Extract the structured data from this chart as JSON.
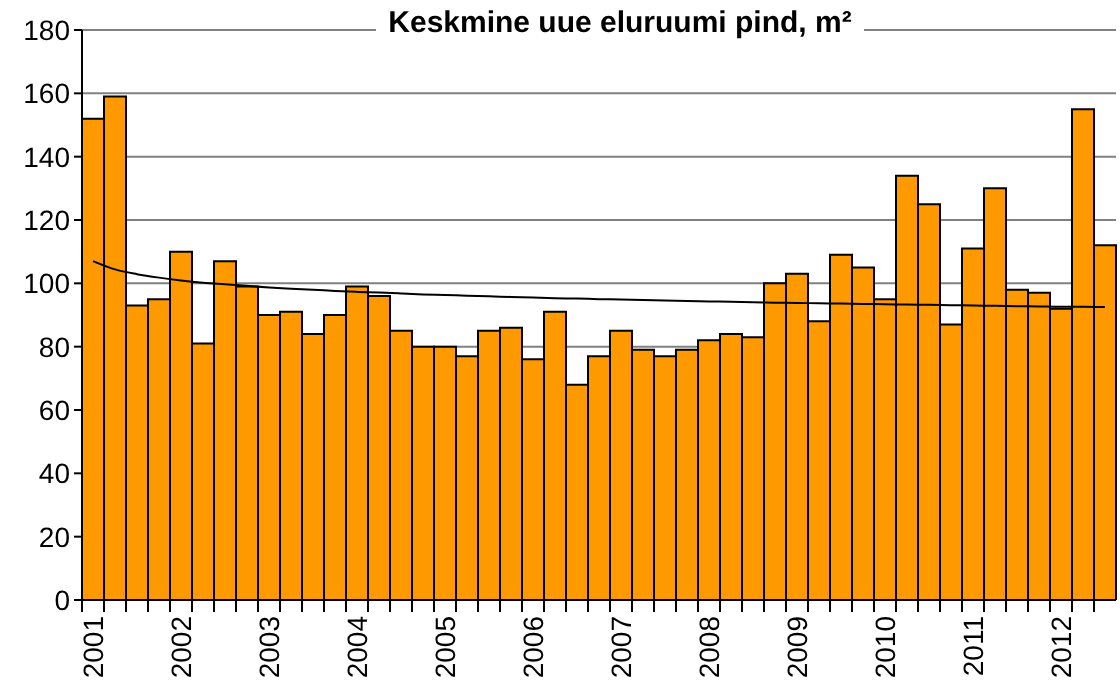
{
  "chart_data": {
    "type": "bar",
    "title": "Keskmine uue eluruumi pind, m²",
    "categories": [
      "2001",
      null,
      null,
      null,
      "2002",
      null,
      null,
      null,
      "2003",
      null,
      null,
      null,
      "2004",
      null,
      null,
      null,
      "2005",
      null,
      null,
      null,
      "2006",
      null,
      null,
      null,
      "2007",
      null,
      null,
      null,
      "2008",
      null,
      null,
      null,
      "2009",
      null,
      null,
      null,
      "2010",
      null,
      null,
      null,
      "2011",
      null,
      null,
      null,
      "2012",
      null,
      null
    ],
    "series": [
      {
        "color": "#ff9900",
        "values": [
          152,
          159,
          93,
          95,
          110,
          81,
          107,
          99,
          90,
          91,
          84,
          90,
          99,
          96,
          85,
          80,
          80,
          77,
          85,
          86,
          76,
          91,
          68,
          77,
          85,
          79,
          77,
          79,
          82,
          84,
          83,
          100,
          103,
          88,
          109,
          105,
          95,
          134,
          125,
          87,
          111,
          130,
          98,
          97,
          92,
          155,
          112
        ]
      },
      {
        "type": "line",
        "color": "#000000",
        "values": [
          107,
          104.4,
          102.9,
          101.8,
          100.9,
          100.2,
          99.7,
          99.2,
          98.7,
          98.3,
          98.0,
          97.6,
          97.3,
          97.1,
          96.8,
          96.5,
          96.3,
          96.1,
          95.9,
          95.7,
          95.5,
          95.3,
          95.2,
          95.0,
          94.9,
          94.7,
          94.6,
          94.4,
          94.3,
          94.2,
          94.0,
          93.9,
          93.8,
          93.7,
          93.6,
          93.5,
          93.4,
          93.3,
          93.2,
          93.1,
          93.0,
          92.9,
          92.8,
          92.7,
          92.6,
          92.6,
          92.5
        ]
      }
    ],
    "ylim": [
      0,
      180
    ],
    "yticks": [
      0,
      20,
      40,
      60,
      80,
      100,
      120,
      140,
      160,
      180
    ],
    "grid": "y"
  }
}
